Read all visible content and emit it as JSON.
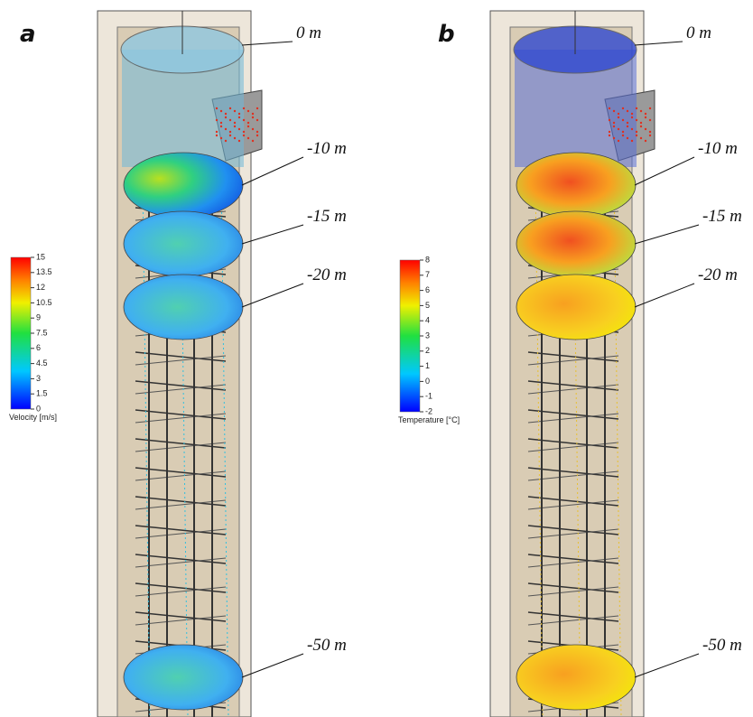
{
  "panels": [
    {
      "label": "a",
      "depth_labels": [
        "0 m",
        "-10 m",
        "-15 m",
        "-20 m",
        "-50 m"
      ],
      "legend": {
        "title": "Velocity [m/s]",
        "ticks": [
          15,
          13.5,
          12,
          10.5,
          9,
          7.5,
          6,
          4.5,
          3,
          1.5,
          0
        ]
      }
    },
    {
      "label": "b",
      "depth_labels": [
        "0 m",
        "-10 m",
        "-15 m",
        "-20 m",
        "-50 m"
      ],
      "legend": {
        "title": "Temperature [°C]",
        "ticks": [
          8,
          7,
          6,
          5,
          4,
          3,
          2,
          1,
          0,
          -1,
          -2
        ]
      }
    }
  ]
}
